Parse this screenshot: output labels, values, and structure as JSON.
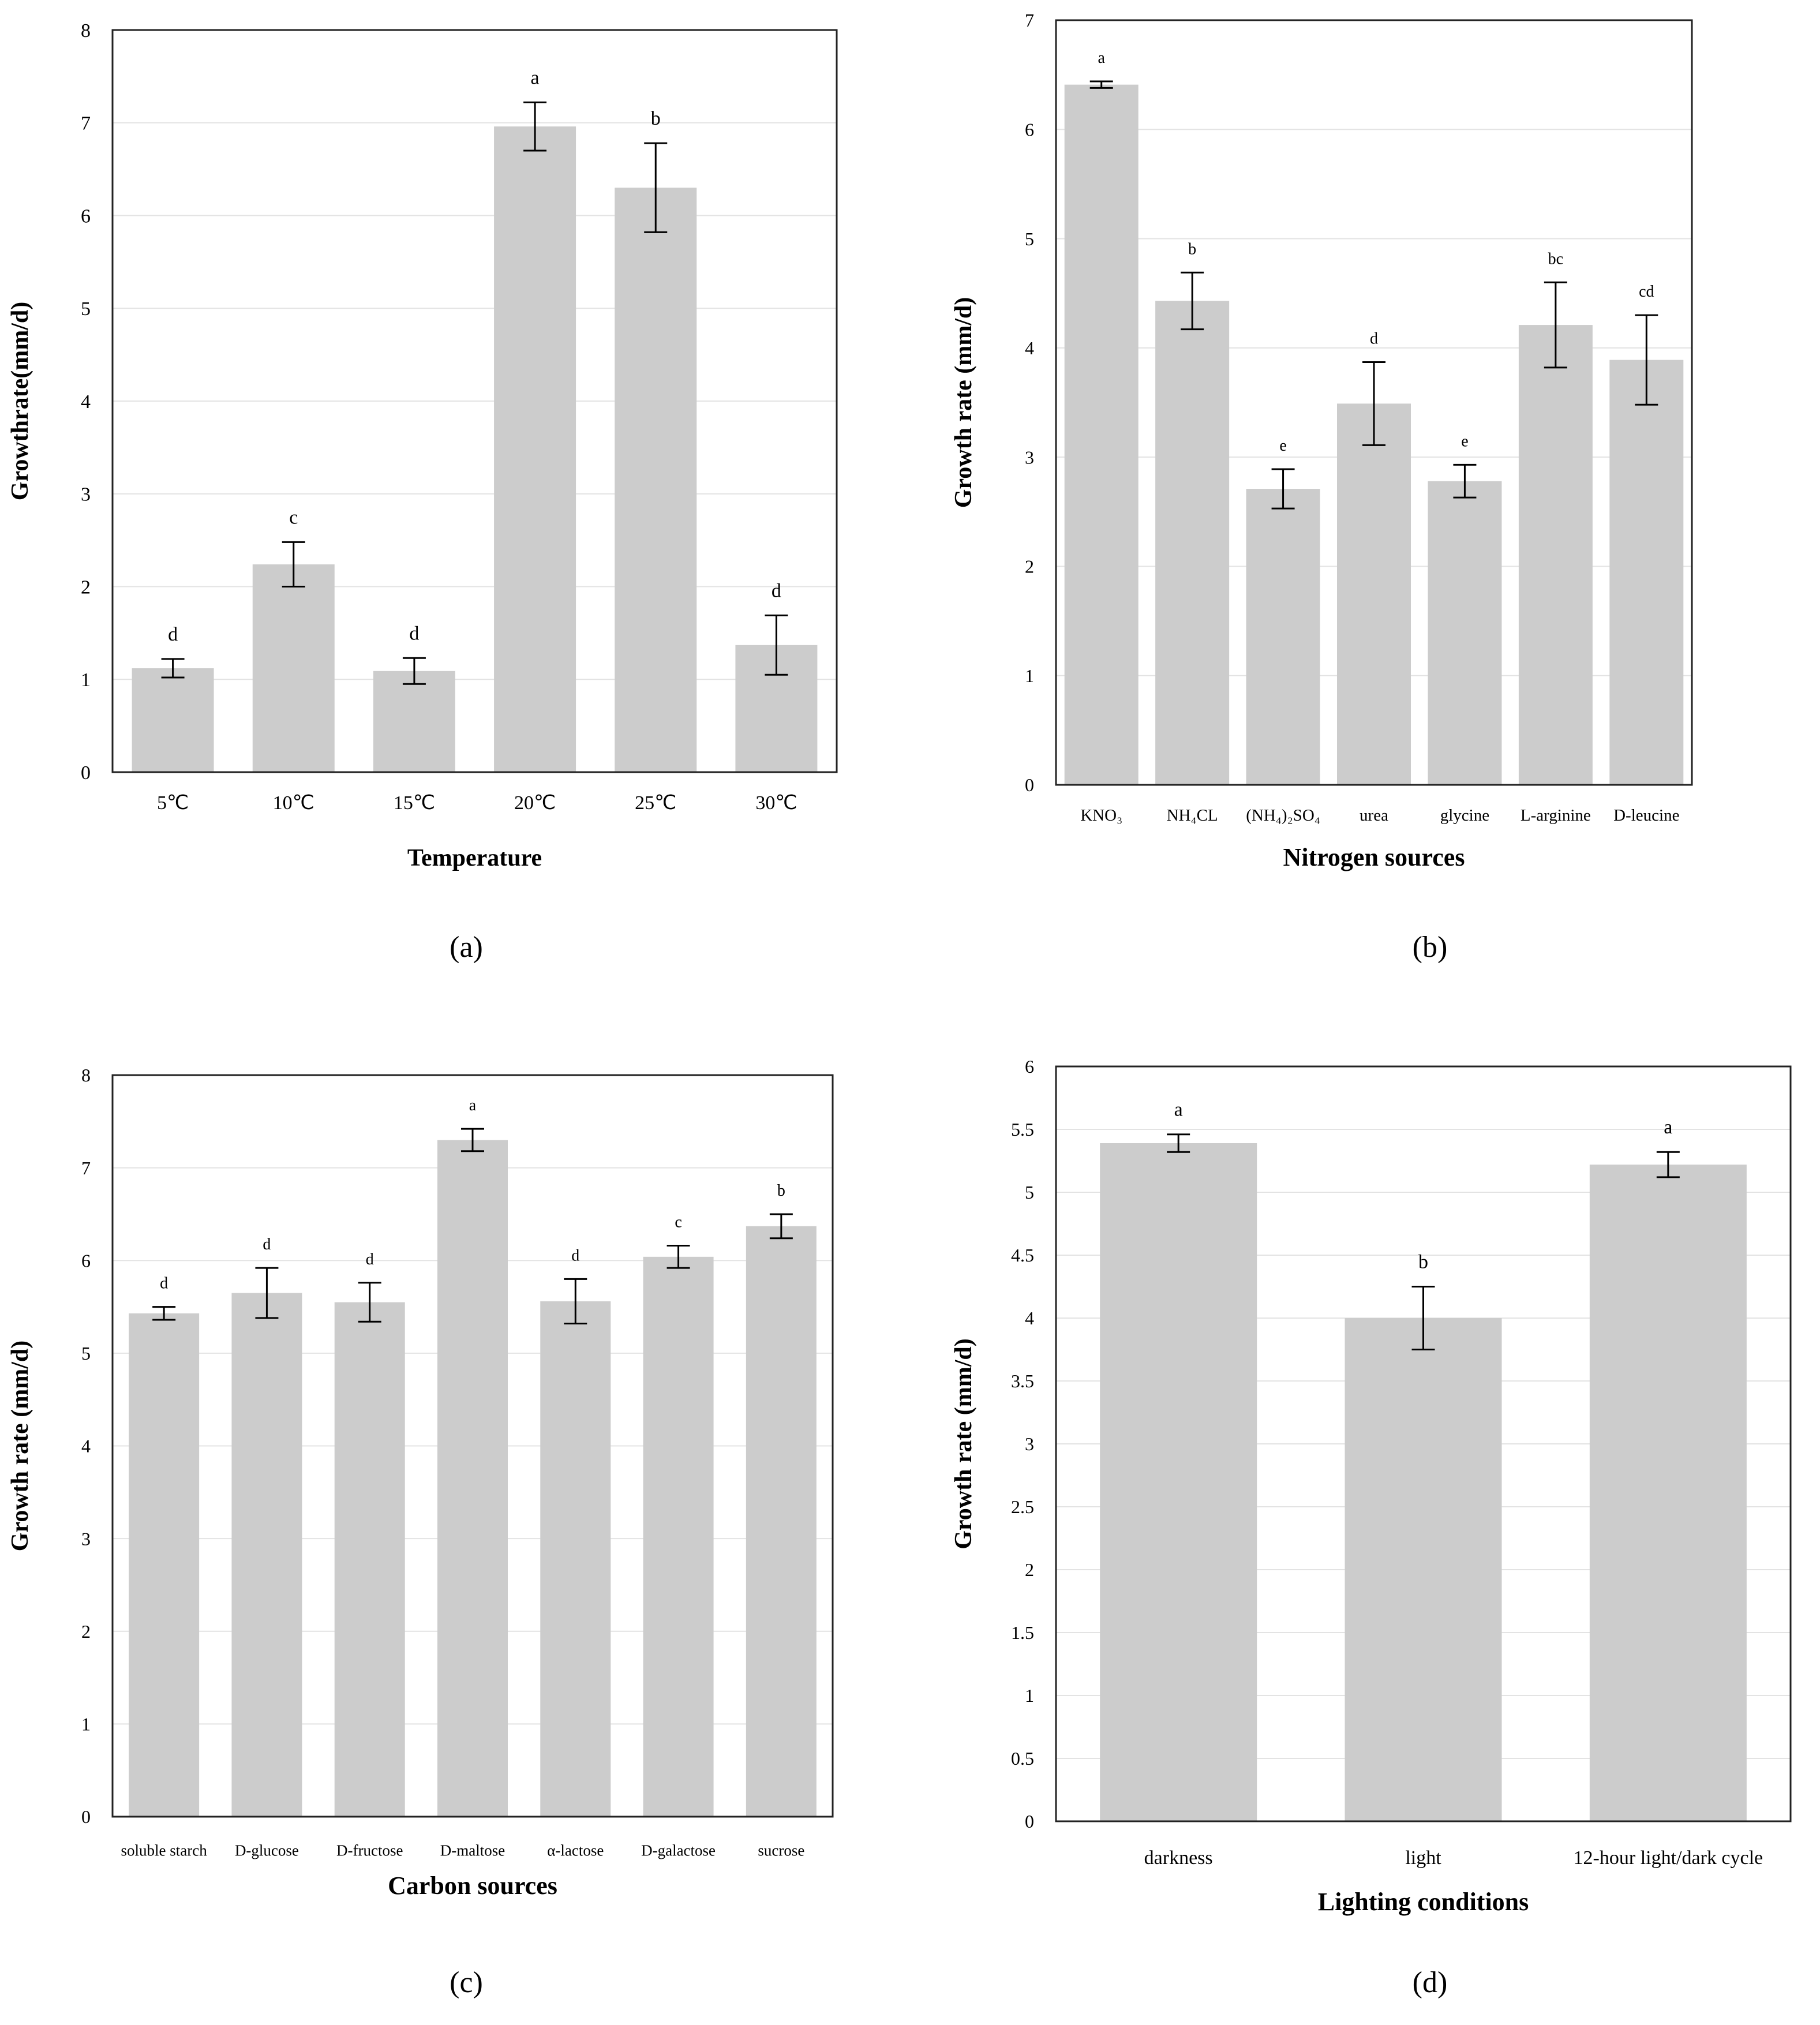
{
  "chart_data": [
    {
      "id": "a",
      "type": "bar",
      "panel_label": "(a)",
      "xlabel": "Temperature",
      "ylabel": "Growthrate(mm/d)",
      "ylim": [
        0,
        8
      ],
      "yticks": [
        0,
        1,
        2,
        3,
        4,
        5,
        6,
        7,
        8
      ],
      "ytick_labels": [
        "0",
        "1",
        "2",
        "3",
        "4",
        "5",
        "6",
        "7",
        "8"
      ],
      "grid": true,
      "categories": [
        "5℃",
        "10℃",
        "15℃",
        "20℃",
        "25℃",
        "30℃"
      ],
      "values": [
        1.12,
        2.24,
        1.09,
        6.96,
        6.3,
        1.37
      ],
      "errors": [
        0.1,
        0.24,
        0.14,
        0.26,
        0.48,
        0.32
      ],
      "significance": [
        "d",
        "c",
        "d",
        "a",
        "b",
        "d"
      ]
    },
    {
      "id": "b",
      "type": "bar",
      "panel_label": "(b)",
      "xlabel": "Nitrogen sources",
      "ylabel": "Growth rate (mm/d)",
      "ylim": [
        0,
        7
      ],
      "yticks": [
        0,
        1,
        2,
        3,
        4,
        5,
        6,
        7
      ],
      "ytick_labels": [
        "0",
        "1",
        "2",
        "3",
        "4",
        "5",
        "6",
        "7"
      ],
      "grid": true,
      "categories": [
        "KNO₃",
        "NH₄CL",
        "(NH₄)₂SO₄",
        "urea",
        "glycine",
        "L-arginine",
        "D-leucine"
      ],
      "values": [
        6.41,
        4.43,
        2.71,
        3.49,
        2.78,
        4.21,
        3.89
      ],
      "errors": [
        0.03,
        0.26,
        0.18,
        0.38,
        0.15,
        0.39,
        0.41
      ],
      "significance": [
        "a",
        "b",
        "e",
        "d",
        "e",
        "bc",
        "cd"
      ]
    },
    {
      "id": "c",
      "type": "bar",
      "panel_label": "(c)",
      "xlabel": "Carbon sources",
      "ylabel": "Growth rate (mm/d)",
      "ylim": [
        0,
        8
      ],
      "yticks": [
        0,
        1,
        2,
        3,
        4,
        5,
        6,
        7,
        8
      ],
      "ytick_labels": [
        "0",
        "1",
        "2",
        "3",
        "4",
        "5",
        "6",
        "7",
        "8"
      ],
      "grid": true,
      "categories": [
        "soluble starch",
        "D-glucose",
        "D-fructose",
        "D-maltose",
        "α-lactose",
        "D-galactose",
        "sucrose"
      ],
      "values": [
        5.43,
        5.65,
        5.55,
        7.3,
        5.56,
        6.04,
        6.37
      ],
      "errors": [
        0.07,
        0.27,
        0.21,
        0.12,
        0.24,
        0.12,
        0.13
      ],
      "significance": [
        "d",
        "d",
        "d",
        "a",
        "d",
        "c",
        "b"
      ]
    },
    {
      "id": "d",
      "type": "bar",
      "panel_label": "(d)",
      "xlabel": "Lighting conditions",
      "ylabel": "Growth rate (mm/d)",
      "ylim": [
        0,
        6
      ],
      "yticks": [
        0,
        0.5,
        1,
        1.5,
        2,
        2.5,
        3,
        3.5,
        4,
        4.5,
        5,
        5.5,
        6
      ],
      "ytick_labels": [
        "0",
        "0.5",
        "1",
        "1.5",
        "2",
        "2.5",
        "3",
        "3.5",
        "4",
        "4.5",
        "5",
        "5.5",
        "6"
      ],
      "grid": true,
      "categories": [
        "darkness",
        "light",
        "12-hour light/dark cycle"
      ],
      "values": [
        5.39,
        4.0,
        5.22
      ],
      "errors": [
        0.07,
        0.25,
        0.1
      ],
      "significance": [
        "a",
        "b",
        "a"
      ]
    }
  ]
}
